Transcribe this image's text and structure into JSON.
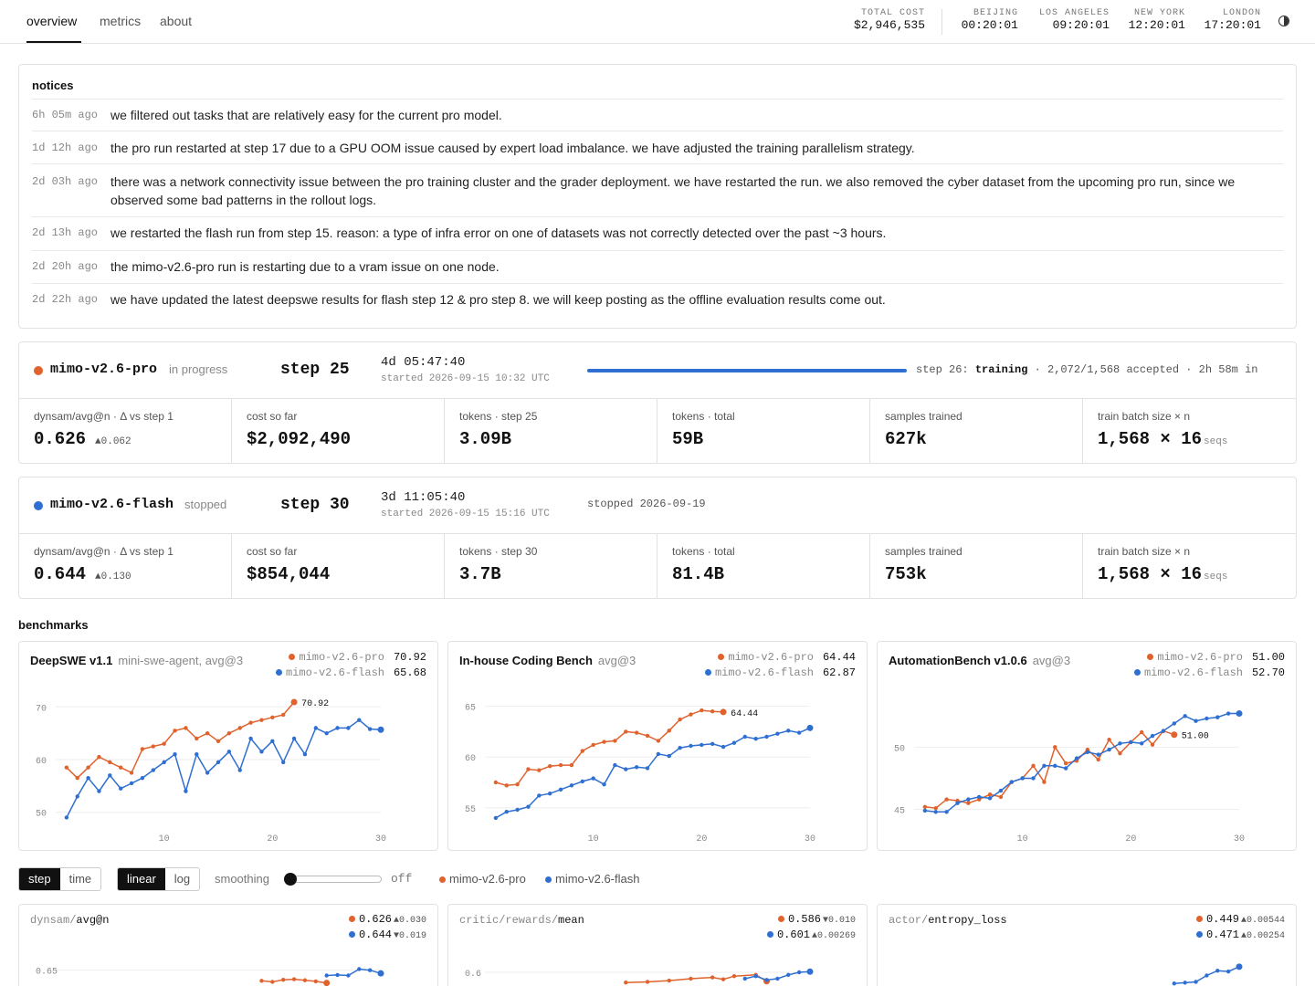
{
  "nav": {
    "tabs": [
      "overview",
      "metrics",
      "about"
    ],
    "active": "overview"
  },
  "header": {
    "total_cost_label": "TOTAL COST",
    "total_cost": "$2,946,535",
    "clocks": [
      {
        "city": "BEIJING",
        "time": "00:20:01"
      },
      {
        "city": "LOS ANGELES",
        "time": "09:20:01"
      },
      {
        "city": "NEW YORK",
        "time": "12:20:01"
      },
      {
        "city": "LONDON",
        "time": "17:20:01"
      }
    ],
    "theme_icon": "half-circle-icon"
  },
  "notices": {
    "title": "notices",
    "items": [
      {
        "time": "6h 05m ago",
        "text": "we filtered out tasks that are relatively easy for the current pro model."
      },
      {
        "time": "1d 12h ago",
        "text": "the pro run restarted at step 17 due to a GPU OOM issue caused by expert load imbalance. we have adjusted the training parallelism strategy."
      },
      {
        "time": "2d 03h ago",
        "text": "there was a network connectivity issue between the pro training cluster and the grader deployment. we have restarted the run. we also removed the cyber dataset from the upcoming pro run, since we observed some bad patterns in the rollout logs."
      },
      {
        "time": "2d 13h ago",
        "text": "we restarted the flash run from step 15. reason: a type of infra error on one of datasets was not correctly detected over the past ~3 hours."
      },
      {
        "time": "2d 20h ago",
        "text": "the mimo-v2.6-pro run is restarting due to a vram issue on one node."
      },
      {
        "time": "2d 22h ago",
        "text": "we have updated the latest deepswe results for flash step 12 & pro step 8. we will keep posting as the offline evaluation results come out."
      }
    ]
  },
  "colors": {
    "pro": "#e0622d",
    "flash": "#2e6fd1"
  },
  "runs": [
    {
      "name": "mimo-v2.6-pro",
      "status": "in progress",
      "step": "step 25",
      "elapsed": "4d 05:47:40",
      "started": "started 2026-09-15 10:32 UTC",
      "progress_prefix": "step 26:",
      "progress_state": "training",
      "progress_suffix": "· 2,072/1,568 accepted · 2h 58m in",
      "metrics": [
        {
          "label": "dynsam/avg@n · Δ vs step 1",
          "value": "0.626",
          "delta": "▲0.062"
        },
        {
          "label": "cost so far",
          "value": "$2,092,490"
        },
        {
          "label": "tokens · step 25",
          "value": "3.09B"
        },
        {
          "label": "tokens · total",
          "value": "59B"
        },
        {
          "label": "samples trained",
          "value": "627k"
        },
        {
          "label": "train batch size × n",
          "value": "1,568 × 16",
          "unit": "seqs"
        }
      ]
    },
    {
      "name": "mimo-v2.6-flash",
      "status": "stopped",
      "step": "step 30",
      "elapsed": "3d 11:05:40",
      "started": "started 2026-09-15 15:16 UTC",
      "stopped_info": "stopped 2026-09-19",
      "metrics": [
        {
          "label": "dynsam/avg@n · Δ vs step 1",
          "value": "0.644",
          "delta": "▲0.130"
        },
        {
          "label": "cost so far",
          "value": "$854,044"
        },
        {
          "label": "tokens · step 30",
          "value": "3.7B"
        },
        {
          "label": "tokens · total",
          "value": "81.4B"
        },
        {
          "label": "samples trained",
          "value": "753k"
        },
        {
          "label": "train batch size × n",
          "value": "1,568 × 16",
          "unit": "seqs"
        }
      ]
    }
  ],
  "benchmarks_title": "benchmarks",
  "benchmarks": [
    {
      "title": "DeepSWE v1.1",
      "subtitle": "mini-swe-agent, avg@3",
      "legend": [
        {
          "name": "mimo-v2.6-pro",
          "value": "70.92"
        },
        {
          "name": "mimo-v2.6-flash",
          "value": "65.68"
        }
      ],
      "end_label": "70.92"
    },
    {
      "title": "In-house Coding Bench",
      "subtitle": "avg@3",
      "legend": [
        {
          "name": "mimo-v2.6-pro",
          "value": "64.44"
        },
        {
          "name": "mimo-v2.6-flash",
          "value": "62.87"
        }
      ],
      "end_label": "64.44"
    },
    {
      "title": "AutomationBench v1.0.6",
      "subtitle": "avg@3",
      "legend": [
        {
          "name": "mimo-v2.6-pro",
          "value": "51.00"
        },
        {
          "name": "mimo-v2.6-flash",
          "value": "52.70"
        }
      ],
      "end_label": "51.00"
    }
  ],
  "controls": {
    "xaxis": [
      "step",
      "time"
    ],
    "xaxis_active": "step",
    "scale": [
      "linear",
      "log"
    ],
    "scale_active": "linear",
    "smoothing_label": "smoothing",
    "smoothing_value": "off",
    "smoothing_level": 0,
    "legend": [
      "mimo-v2.6-pro",
      "mimo-v2.6-flash"
    ]
  },
  "metric_charts": [
    {
      "prefix": "dynsam/",
      "name": "avg@n",
      "pro_value": "0.626",
      "pro_delta": "▲0.030",
      "flash_value": "0.644",
      "flash_delta": "▼0.019",
      "tick": "0.65"
    },
    {
      "prefix": "critic/rewards/",
      "name": "mean",
      "pro_value": "0.586",
      "pro_delta": "▼0.010",
      "flash_value": "0.601",
      "flash_delta": "▲0.00269",
      "tick": "0.60"
    },
    {
      "prefix": "actor/",
      "name": "entropy_loss",
      "pro_value": "0.449",
      "pro_delta": "▲0.00544",
      "flash_value": "0.471",
      "flash_delta": "▲0.00254",
      "tick": ""
    }
  ],
  "chart_data": [
    {
      "type": "line",
      "title": "DeepSWE v1.1",
      "xlim": [
        0,
        30
      ],
      "ylim": [
        47,
        73
      ],
      "xticks": [
        10,
        20,
        30
      ],
      "yticks": [
        50,
        60,
        70
      ],
      "series": [
        {
          "name": "mimo-v2.6-pro",
          "x": [
            1,
            2,
            3,
            4,
            5,
            6,
            7,
            8,
            9,
            10,
            11,
            12,
            13,
            14,
            15,
            16,
            17,
            18,
            19,
            20,
            21,
            22
          ],
          "y": [
            58.5,
            56.5,
            58.5,
            60.5,
            59.5,
            58.5,
            57.5,
            62,
            62.5,
            63,
            65.5,
            66,
            64,
            65,
            63.5,
            65,
            66,
            67,
            67.5,
            68,
            68.5,
            70.92
          ]
        },
        {
          "name": "mimo-v2.6-flash",
          "x": [
            1,
            2,
            3,
            4,
            5,
            6,
            7,
            8,
            9,
            10,
            11,
            12,
            13,
            14,
            15,
            16,
            17,
            18,
            19,
            20,
            21,
            22,
            23,
            24,
            25,
            26,
            27,
            28,
            29,
            30
          ],
          "y": [
            49,
            53,
            56.5,
            54,
            57,
            54.5,
            55.5,
            56.5,
            58,
            59.5,
            61,
            54,
            61,
            57.5,
            59.5,
            61.5,
            58,
            64,
            61.5,
            63.5,
            59.5,
            64,
            61,
            66,
            65,
            66,
            66,
            67.5,
            65.8,
            65.68
          ]
        }
      ]
    },
    {
      "type": "line",
      "title": "In-house Coding Bench",
      "xlim": [
        0,
        30
      ],
      "ylim": [
        53,
        66.5
      ],
      "xticks": [
        10,
        20,
        30
      ],
      "yticks": [
        55,
        60,
        65
      ],
      "series": [
        {
          "name": "mimo-v2.6-pro",
          "x": [
            1,
            2,
            3,
            4,
            5,
            6,
            7,
            8,
            9,
            10,
            11,
            12,
            13,
            14,
            15,
            16,
            17,
            18,
            19,
            20,
            21,
            22
          ],
          "y": [
            57.5,
            57.2,
            57.3,
            58.8,
            58.7,
            59.1,
            59.2,
            59.2,
            60.6,
            61.2,
            61.5,
            61.6,
            62.5,
            62.4,
            62.1,
            61.6,
            62.6,
            63.7,
            64.2,
            64.6,
            64.5,
            64.44
          ]
        },
        {
          "name": "mimo-v2.6-flash",
          "x": [
            1,
            2,
            3,
            4,
            5,
            6,
            7,
            8,
            9,
            10,
            11,
            12,
            13,
            14,
            15,
            16,
            17,
            18,
            19,
            20,
            21,
            22,
            23,
            24,
            25,
            26,
            27,
            28,
            29,
            30
          ],
          "y": [
            54,
            54.6,
            54.8,
            55.1,
            56.2,
            56.4,
            56.8,
            57.2,
            57.6,
            57.9,
            57.3,
            59.2,
            58.8,
            59,
            58.9,
            60.3,
            60.1,
            60.9,
            61.1,
            61.2,
            61.3,
            61,
            61.4,
            62,
            61.8,
            62,
            62.3,
            62.6,
            62.4,
            62.87
          ]
        }
      ]
    },
    {
      "type": "line",
      "title": "AutomationBench v1.0.6",
      "xlim": [
        0,
        30
      ],
      "ylim": [
        43.5,
        54.5
      ],
      "xticks": [
        10,
        20,
        30
      ],
      "yticks": [
        45,
        50
      ],
      "series": [
        {
          "name": "mimo-v2.6-pro",
          "x": [
            1,
            2,
            3,
            4,
            5,
            6,
            7,
            8,
            9,
            10,
            11,
            12,
            13,
            14,
            15,
            16,
            17,
            18,
            19,
            20,
            21,
            22,
            23,
            24
          ],
          "y": [
            45.2,
            45.1,
            45.8,
            45.7,
            45.5,
            45.8,
            46.2,
            46,
            47.2,
            47.5,
            48.5,
            47.2,
            50,
            48.7,
            48.9,
            49.8,
            49,
            50.6,
            49.5,
            50.4,
            51.2,
            50.2,
            51.3,
            51.0
          ]
        },
        {
          "name": "mimo-v2.6-flash",
          "x": [
            1,
            2,
            3,
            4,
            5,
            6,
            7,
            8,
            9,
            10,
            11,
            12,
            13,
            14,
            15,
            16,
            17,
            18,
            19,
            20,
            21,
            22,
            23,
            24,
            25,
            26,
            27,
            28,
            29,
            30
          ],
          "y": [
            44.9,
            44.8,
            44.8,
            45.5,
            45.8,
            46,
            45.9,
            46.5,
            47.2,
            47.5,
            47.5,
            48.5,
            48.5,
            48.3,
            49.1,
            49.6,
            49.4,
            49.8,
            50.3,
            50.4,
            50.3,
            50.9,
            51.3,
            51.9,
            52.5,
            52.1,
            52.3,
            52.4,
            52.7,
            52.7
          ]
        }
      ]
    },
    {
      "type": "line",
      "title": "dynsam/avg@n",
      "xlim": [
        0,
        30
      ],
      "ylim": [
        0.55,
        0.67
      ],
      "yticks": [
        0.65
      ],
      "series": [
        {
          "name": "mimo-v2.6-pro",
          "x": [
            19,
            20,
            21,
            22,
            23,
            24,
            25
          ],
          "y": [
            0.63,
            0.628,
            0.632,
            0.633,
            0.631,
            0.629,
            0.626
          ]
        },
        {
          "name": "mimo-v2.6-flash",
          "x": [
            25,
            26,
            27,
            28,
            29,
            30
          ],
          "y": [
            0.64,
            0.641,
            0.64,
            0.652,
            0.65,
            0.644
          ]
        }
      ]
    },
    {
      "type": "line",
      "title": "critic/rewards/mean",
      "xlim": [
        0,
        30
      ],
      "ylim": [
        0.52,
        0.62
      ],
      "yticks": [
        0.6
      ],
      "series": [
        {
          "name": "mimo-v2.6-pro",
          "x": [
            13,
            15,
            17,
            19,
            21,
            22,
            23,
            25,
            26
          ],
          "y": [
            0.584,
            0.585,
            0.587,
            0.59,
            0.592,
            0.589,
            0.594,
            0.596,
            0.586
          ]
        },
        {
          "name": "mimo-v2.6-flash",
          "x": [
            24,
            25,
            26,
            27,
            28,
            29,
            30
          ],
          "y": [
            0.59,
            0.594,
            0.588,
            0.59,
            0.596,
            0.6,
            0.601
          ]
        }
      ]
    },
    {
      "type": "line",
      "title": "actor/entropy_loss",
      "xlim": [
        0,
        30
      ],
      "ylim": [
        0.4,
        0.48
      ],
      "series": [
        {
          "name": "mimo-v2.6-flash",
          "x": [
            24,
            25,
            26,
            27,
            28,
            29,
            30
          ],
          "y": [
            0.45,
            0.451,
            0.452,
            0.46,
            0.466,
            0.465,
            0.471
          ]
        }
      ]
    }
  ]
}
